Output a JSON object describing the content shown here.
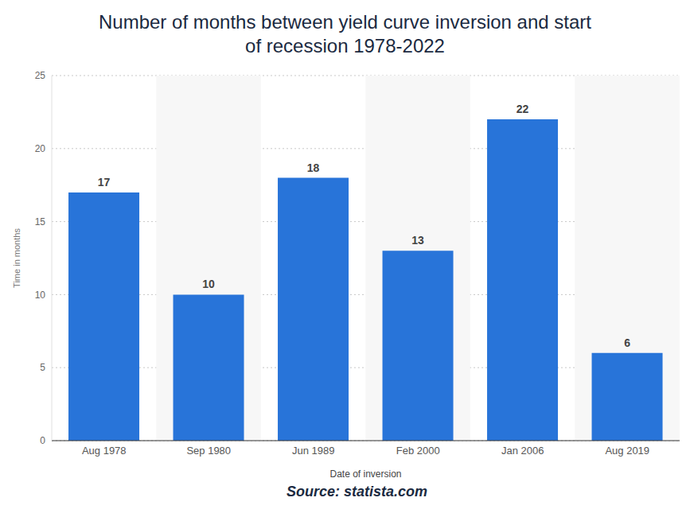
{
  "chart_data": {
    "type": "bar",
    "title": "Number of months between yield curve inversion and start of recession 1978-2022",
    "x_label": "Date of inversion",
    "y_label": "Time in months",
    "source": "Source: statista.com",
    "categories": [
      "Aug 1978",
      "Sep 1980",
      "Jun 1989",
      "Feb 2000",
      "Jan 2006",
      "Aug 2019"
    ],
    "values": [
      17,
      10,
      18,
      13,
      22,
      6
    ],
    "color": "#2874d9",
    "ylim": [
      0,
      25
    ],
    "yticks": [
      0,
      5,
      10,
      15,
      20,
      25
    ],
    "grid": true,
    "data_labels": true
  }
}
